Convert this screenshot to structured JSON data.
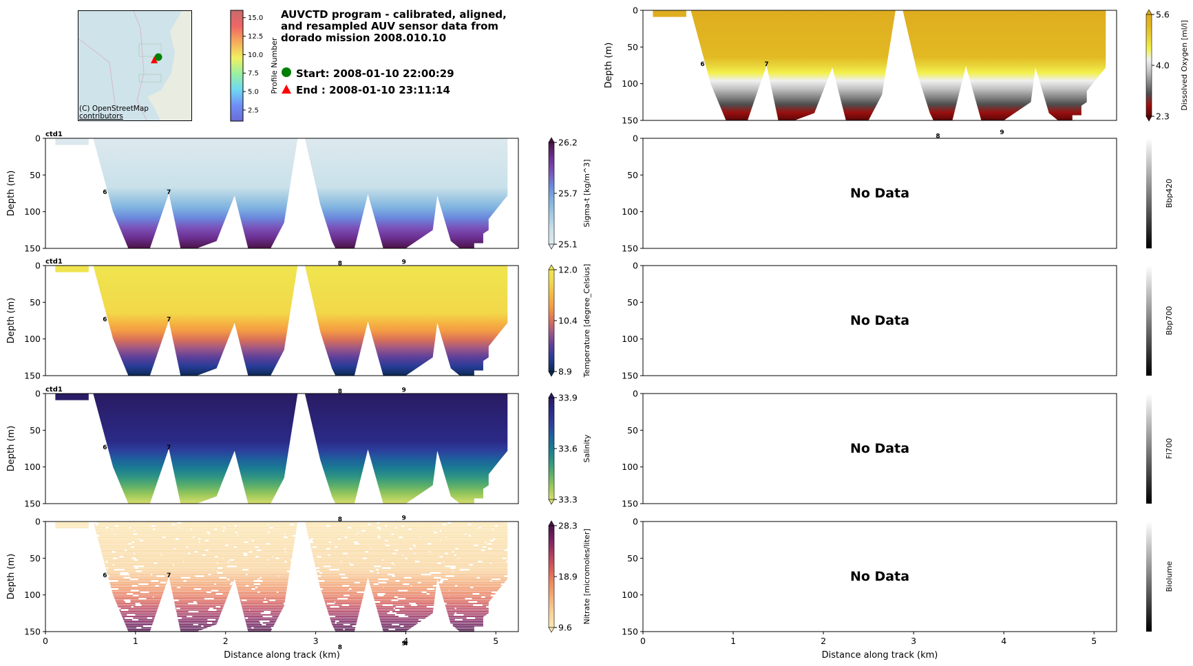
{
  "header": {
    "title": "AUVCTD program - calibrated, aligned,\nand resampled AUV sensor data from\ndorado mission 2008.010.10",
    "start_label": "Start: 2008-01-10 22:00:29",
    "end_label": "End  : 2008-01-10 23:11:14",
    "start_marker_color": "#008000",
    "end_marker_color": "#ff0000"
  },
  "map": {
    "attribution_line1": "(C) OpenStreetMap",
    "attribution_line2": "contributors",
    "water_color": "#cfe3ea"
  },
  "profile_colorbar": {
    "label": "Profile Number",
    "ticks": [
      "2.5",
      "5.0",
      "7.5",
      "10.0",
      "12.5",
      "15.0"
    ],
    "range": [
      1,
      16
    ]
  },
  "chart_data": [
    {
      "id": "sigma_t",
      "type": "heatmap",
      "column": "left",
      "row": 1,
      "title": "",
      "corner_label": "ctd1",
      "xlabel": "",
      "ylabel": "Depth (m)",
      "xlim": [
        0,
        5.25
      ],
      "ylim": [
        150,
        0
      ],
      "yticks": [
        0,
        50,
        100,
        150
      ],
      "xticks": [],
      "colorbar_label": "Sigma-t [kg/m^3]",
      "colorbar_ticks": [
        "26.2",
        "25.7",
        "25.1"
      ],
      "colorbar_range": [
        25.1,
        26.2
      ],
      "colormap": [
        "#dde9ee",
        "#c9e1ea",
        "#a4cbe3",
        "#7fb3e0",
        "#6b89dd",
        "#7a51b8",
        "#6b2e8f",
        "#4b1446"
      ],
      "profile_labels": [
        {
          "text": "6",
          "x": 0.66,
          "depth": 72
        },
        {
          "text": "7",
          "x": 1.37,
          "depth": 72
        }
      ],
      "has_data": true
    },
    {
      "id": "temperature",
      "type": "heatmap",
      "column": "left",
      "row": 2,
      "corner_label": "ctd1",
      "ylabel": "Depth (m)",
      "xlim": [
        0,
        5.25
      ],
      "ylim": [
        150,
        0
      ],
      "yticks": [
        0,
        50,
        100,
        150
      ],
      "colorbar_label": "Temperature [degree_Celsius]",
      "colorbar_ticks": [
        "12.0",
        "10.4",
        "8.9"
      ],
      "colorbar_range": [
        8.9,
        12.0
      ],
      "colormap": [
        "#efe54e",
        "#f2d84a",
        "#f5b842",
        "#f39a44",
        "#d8705a",
        "#9a5689",
        "#5a3f9a",
        "#263c96",
        "#0d2a54"
      ],
      "profile_labels": [
        {
          "text": "6",
          "x": 0.66,
          "depth": 72
        },
        {
          "text": "7",
          "x": 1.37,
          "depth": 72
        },
        {
          "text": "8",
          "x": 3.27,
          "depth": -4
        },
        {
          "text": "9",
          "x": 3.98,
          "depth": -6
        }
      ],
      "has_data": true
    },
    {
      "id": "salinity",
      "type": "heatmap",
      "column": "left",
      "row": 3,
      "corner_label": "ctd1",
      "ylabel": "Depth (m)",
      "xlim": [
        0,
        5.25
      ],
      "ylim": [
        150,
        0
      ],
      "yticks": [
        0,
        50,
        100,
        150
      ],
      "colorbar_label": "Salinity",
      "colorbar_ticks": [
        "33.9",
        "33.6",
        "33.3"
      ],
      "colorbar_range": [
        33.3,
        33.9
      ],
      "colormap": [
        "#2a1b63",
        "#2a2a86",
        "#2d3d9c",
        "#1f5f9c",
        "#1a7a93",
        "#2f9483",
        "#5cb06a",
        "#9bc85a",
        "#d7de6e"
      ],
      "profile_labels": [
        {
          "text": "6",
          "x": 0.66,
          "depth": 72
        },
        {
          "text": "7",
          "x": 1.37,
          "depth": 72
        },
        {
          "text": "8",
          "x": 3.27,
          "depth": -4
        },
        {
          "text": "9",
          "x": 3.98,
          "depth": -6
        }
      ],
      "has_data": true
    },
    {
      "id": "nitrate",
      "type": "heatmap",
      "column": "left",
      "row": 4,
      "corner_label": "",
      "xlabel": "Distance along track (km)",
      "ylabel": "Depth (m)",
      "xlim": [
        0,
        5.25
      ],
      "ylim": [
        150,
        0
      ],
      "yticks": [
        0,
        50,
        100,
        150
      ],
      "xticks": [
        0,
        1,
        2,
        3,
        4,
        5
      ],
      "colorbar_label": "Nitrate [micromoles/liter]",
      "colorbar_ticks": [
        "28.3",
        "18.9",
        "9.6"
      ],
      "colorbar_range": [
        9.6,
        28.3
      ],
      "colormap": [
        "#fbe6b0",
        "#f8d29a",
        "#f4b07a",
        "#ee8c62",
        "#da5f55",
        "#b03d60",
        "#7d2261",
        "#4a1349"
      ],
      "profile_labels": [
        {
          "text": "6",
          "x": 0.66,
          "depth": 72
        },
        {
          "text": "7",
          "x": 1.37,
          "depth": 72
        },
        {
          "text": "8",
          "x": 3.27,
          "depth": -4
        },
        {
          "text": "9",
          "x": 3.98,
          "depth": -6
        },
        {
          "text": "8",
          "x": 3.27,
          "depth": 170
        },
        {
          "text": "9",
          "x": 3.98,
          "depth": 165
        },
        {
          "text": "4",
          "x": 4.0,
          "depth": 165
        }
      ],
      "striped": true,
      "has_data": true
    },
    {
      "id": "dissolved_oxygen",
      "type": "heatmap",
      "column": "right",
      "row": 0,
      "ylabel": "Depth (m)",
      "xlim": [
        0,
        5.25
      ],
      "ylim": [
        150,
        0
      ],
      "yticks": [
        0,
        50,
        100,
        150
      ],
      "colorbar_label": "Dissolved Oxygen [ml/l]",
      "colorbar_ticks": [
        "5.6",
        "4.0",
        "2.3"
      ],
      "colorbar_range": [
        2.3,
        5.6
      ],
      "colormap": [
        "#dfad1f",
        "#e2b923",
        "#e8d238",
        "#f2f04a",
        "#f0f0f0",
        "#c4c4c4",
        "#8a8a8a",
        "#4e4e4e",
        "#9b1010",
        "#5a0606"
      ],
      "profile_labels": [
        {
          "text": "6",
          "x": 0.66,
          "depth": 72
        },
        {
          "text": "7",
          "x": 1.37,
          "depth": 72
        },
        {
          "text": "8",
          "x": 3.27,
          "depth": 170
        },
        {
          "text": "9",
          "x": 3.98,
          "depth": 165
        }
      ],
      "has_data": true
    },
    {
      "id": "bbp420",
      "type": "heatmap",
      "column": "right",
      "row": 1,
      "ylabel": "",
      "xlim": [
        0,
        5.25
      ],
      "ylim": [
        150,
        0
      ],
      "yticks": [
        0,
        50,
        100,
        150
      ],
      "colorbar_label": "Bbp420",
      "colorbar_ticks": [],
      "no_data_text": "No Data",
      "profile_labels": [],
      "has_data": false
    },
    {
      "id": "bbp700",
      "type": "heatmap",
      "column": "right",
      "row": 2,
      "xlim": [
        0,
        5.25
      ],
      "ylim": [
        150,
        0
      ],
      "yticks": [
        0,
        50,
        100,
        150
      ],
      "colorbar_label": "Bbp700",
      "colorbar_ticks": [],
      "no_data_text": "No Data",
      "profile_labels": [],
      "has_data": false
    },
    {
      "id": "fl700",
      "type": "heatmap",
      "column": "right",
      "row": 3,
      "xlim": [
        0,
        5.25
      ],
      "ylim": [
        150,
        0
      ],
      "yticks": [
        0,
        50,
        100,
        150
      ],
      "colorbar_label": "Fl700",
      "colorbar_ticks": [],
      "no_data_text": "No Data",
      "profile_labels": [],
      "has_data": false
    },
    {
      "id": "biolume",
      "type": "heatmap",
      "column": "right",
      "row": 4,
      "xlabel": "Distance along track (km)",
      "xlim": [
        0,
        5.25
      ],
      "ylim": [
        150,
        0
      ],
      "yticks": [
        0,
        50,
        100,
        150
      ],
      "xticks": [
        0,
        1,
        2,
        3,
        4,
        5
      ],
      "colorbar_label": "Biolume",
      "colorbar_ticks": [],
      "no_data_text": "No Data",
      "profile_labels": [],
      "has_data": false
    }
  ],
  "section_coverage": {
    "surface_block": {
      "x": [
        0.11,
        0.48
      ],
      "depth": [
        0,
        9
      ]
    },
    "outline_km_m": [
      [
        0.53,
        0
      ],
      [
        0.75,
        100
      ],
      [
        0.92,
        150
      ],
      [
        1.16,
        150
      ],
      [
        1.37,
        75
      ],
      [
        1.5,
        150
      ],
      [
        1.68,
        150
      ],
      [
        1.9,
        140
      ],
      [
        2.1,
        78
      ],
      [
        2.25,
        150
      ],
      [
        2.5,
        150
      ],
      [
        2.65,
        115
      ],
      [
        2.8,
        0
      ],
      [
        2.88,
        0
      ],
      [
        3.05,
        90
      ],
      [
        3.18,
        140
      ],
      [
        3.22,
        150
      ],
      [
        3.43,
        150
      ],
      [
        3.58,
        76
      ],
      [
        3.75,
        150
      ],
      [
        4.0,
        150
      ],
      [
        4.3,
        125
      ],
      [
        4.35,
        78
      ],
      [
        4.5,
        140
      ],
      [
        4.6,
        150
      ],
      [
        4.76,
        150
      ],
      [
        4.76,
        143
      ],
      [
        4.86,
        143
      ],
      [
        4.86,
        130
      ],
      [
        4.92,
        125
      ],
      [
        4.92,
        110
      ],
      [
        5.05,
        90
      ],
      [
        5.13,
        78
      ],
      [
        5.13,
        0
      ]
    ]
  }
}
